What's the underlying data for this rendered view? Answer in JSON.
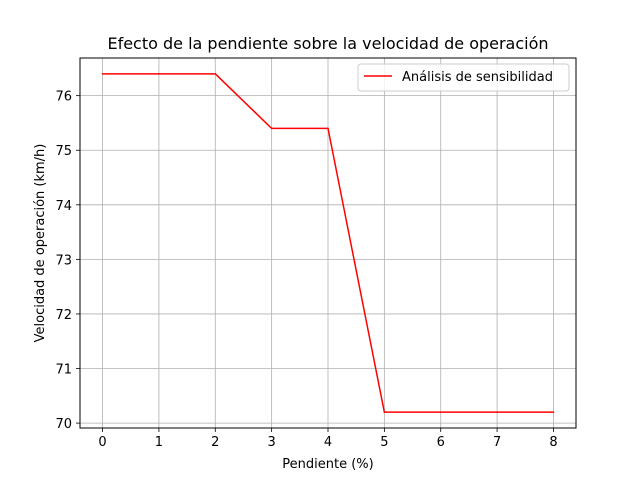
{
  "chart_data": {
    "type": "line",
    "title": "Efecto de la pendiente sobre la velocidad de operación",
    "xlabel": "Pendiente (%)",
    "ylabel": "Velocidad de operación (km/h)",
    "x": [
      0,
      1,
      2,
      3,
      4,
      5,
      6,
      7,
      8
    ],
    "series": [
      {
        "name": "Análisis de sensibilidad",
        "color": "#ff0000",
        "values": [
          76.4,
          76.4,
          76.4,
          75.4,
          75.4,
          70.2,
          70.2,
          70.2,
          70.2
        ]
      }
    ],
    "xlim": [
      -0.4,
      8.4
    ],
    "ylim": [
      69.91,
      76.69
    ],
    "xticks": [
      0,
      1,
      2,
      3,
      4,
      5,
      6,
      7,
      8
    ],
    "xtick_labels": [
      "0",
      "1",
      "2",
      "3",
      "4",
      "5",
      "6",
      "7",
      "8"
    ],
    "yticks": [
      70,
      71,
      72,
      73,
      74,
      75,
      76
    ],
    "ytick_labels": [
      "70",
      "71",
      "72",
      "73",
      "74",
      "75",
      "76"
    ],
    "grid": true,
    "legend_position": "top-right"
  }
}
